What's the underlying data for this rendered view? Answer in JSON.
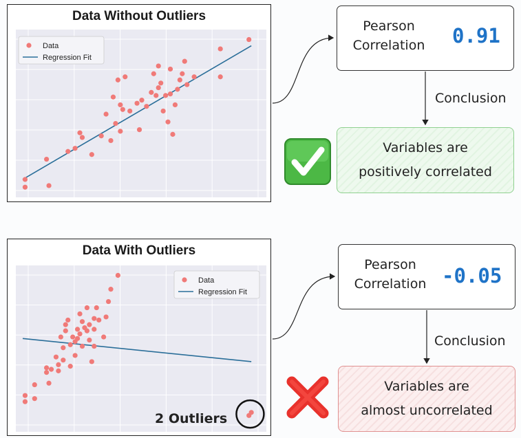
{
  "top": {
    "title": "Data Without Outliers",
    "pearson_label_line1": "Pearson",
    "pearson_label_line2": "Correlation",
    "pearson_value": "0.91",
    "conclusion_label": "Conclusion",
    "conclusion_line1": "Variables are",
    "conclusion_line2": "positively correlated",
    "icon": "check-mark-icon"
  },
  "bottom": {
    "title": "Data With Outliers",
    "pearson_label_line1": "Pearson",
    "pearson_label_line2": "Correlation",
    "pearson_value": "-0.05",
    "conclusion_label": "Conclusion",
    "conclusion_line1": "Variables are",
    "conclusion_line2": "almost uncorrelated",
    "outlier_label": "2 Outliers",
    "icon": "cross-mark-icon"
  },
  "colors": {
    "points": "#f07a78",
    "regression": "#2a6e99",
    "plot_bg": "#eaeaf2",
    "value": "#1f73c7",
    "good": "#8fd08f",
    "bad": "#e09090"
  },
  "chart_data": [
    {
      "type": "scatter",
      "title": "Data Without Outliers",
      "legend": [
        "Data",
        "Regression Fit"
      ],
      "legend_placement": "top-left",
      "grid": true,
      "xlim": [
        0,
        100
      ],
      "ylim": [
        0,
        100
      ],
      "points": [
        [
          1,
          8
        ],
        [
          1,
          3
        ],
        [
          10,
          21
        ],
        [
          11,
          4
        ],
        [
          19,
          26
        ],
        [
          22,
          28
        ],
        [
          24,
          38
        ],
        [
          25,
          35
        ],
        [
          29,
          24
        ],
        [
          33,
          36
        ],
        [
          35,
          50
        ],
        [
          37,
          33
        ],
        [
          38,
          61
        ],
        [
          39,
          44
        ],
        [
          40,
          72
        ],
        [
          41,
          39
        ],
        [
          41,
          56
        ],
        [
          42,
          53
        ],
        [
          43,
          74
        ],
        [
          45,
          52
        ],
        [
          48,
          57
        ],
        [
          49,
          40
        ],
        [
          50,
          59
        ],
        [
          52,
          55
        ],
        [
          54,
          64
        ],
        [
          55,
          76
        ],
        [
          56,
          62
        ],
        [
          57,
          67
        ],
        [
          57,
          81
        ],
        [
          58,
          70
        ],
        [
          59,
          52
        ],
        [
          60,
          62
        ],
        [
          61,
          45
        ],
        [
          62,
          79
        ],
        [
          62,
          63
        ],
        [
          63,
          37
        ],
        [
          64,
          56
        ],
        [
          65,
          66
        ],
        [
          66,
          72
        ],
        [
          67,
          76
        ],
        [
          68,
          84
        ],
        [
          69,
          69
        ],
        [
          72,
          74
        ],
        [
          83,
          74
        ],
        [
          83,
          92
        ],
        [
          95,
          98
        ]
      ],
      "regression": {
        "x": [
          0,
          96
        ],
        "y": [
          8,
          94
        ]
      }
    },
    {
      "type": "scatter",
      "title": "Data With Outliers",
      "legend": [
        "Data",
        "Regression Fit"
      ],
      "legend_placement": "top-right",
      "grid": true,
      "xlim": [
        0,
        100
      ],
      "ylim": [
        0,
        100
      ],
      "points": [
        [
          1,
          20
        ],
        [
          1,
          16
        ],
        [
          5,
          27
        ],
        [
          5,
          18
        ],
        [
          10,
          38
        ],
        [
          10,
          35
        ],
        [
          11,
          28
        ],
        [
          12,
          37
        ],
        [
          14,
          45
        ],
        [
          15,
          40
        ],
        [
          15,
          36
        ],
        [
          16,
          58
        ],
        [
          17,
          43
        ],
        [
          17,
          51
        ],
        [
          18,
          62
        ],
        [
          18,
          66
        ],
        [
          19,
          69
        ],
        [
          20,
          39
        ],
        [
          20,
          53
        ],
        [
          21,
          58
        ],
        [
          22,
          46
        ],
        [
          22,
          55
        ],
        [
          23,
          57
        ],
        [
          23,
          63
        ],
        [
          24,
          73
        ],
        [
          24,
          60
        ],
        [
          25,
          52
        ],
        [
          25,
          68
        ],
        [
          26,
          64
        ],
        [
          27,
          62
        ],
        [
          27,
          77
        ],
        [
          28,
          56
        ],
        [
          28,
          66
        ],
        [
          29,
          42
        ],
        [
          30,
          52
        ],
        [
          30,
          70
        ],
        [
          30,
          63
        ],
        [
          31,
          77
        ],
        [
          32,
          69
        ],
        [
          34,
          58
        ],
        [
          35,
          71
        ],
        [
          36,
          81
        ],
        [
          37,
          89
        ],
        [
          40,
          98
        ],
        [
          95,
          7
        ],
        [
          96,
          9
        ]
      ],
      "regression": {
        "x": [
          0,
          96
        ],
        "y": [
          57,
          42
        ]
      }
    }
  ]
}
